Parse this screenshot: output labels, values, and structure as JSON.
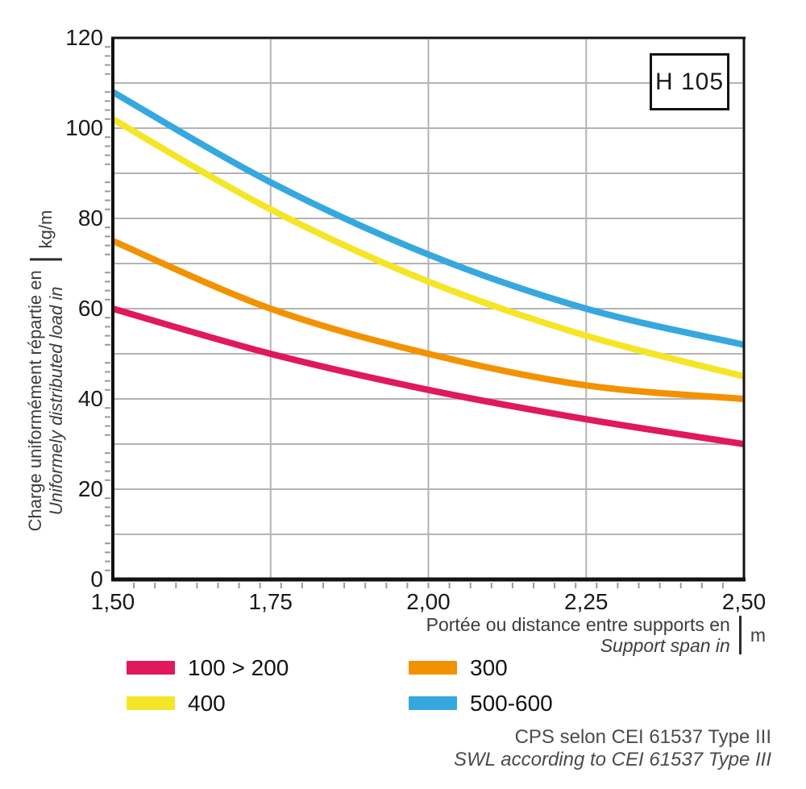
{
  "reference_box": {
    "label": "H 105"
  },
  "chart_data": {
    "type": "line",
    "title": "",
    "x": [
      1.5,
      1.75,
      2.0,
      2.25,
      2.5
    ],
    "x_tick_labels": [
      "1,50",
      "1,75",
      "2,00",
      "2,25",
      "2,50"
    ],
    "y_ticks": [
      0,
      20,
      40,
      60,
      80,
      100,
      120
    ],
    "xlim": [
      1.5,
      2.5
    ],
    "ylim": [
      0,
      120
    ],
    "grid": {
      "y_major_step": 10,
      "y_minor_step": 2,
      "x_minor_divisions": 30,
      "gridlines_x_at": [
        1.75,
        2.0,
        2.25
      ]
    },
    "series": [
      {
        "name": "100 > 200",
        "color": "#e0195c",
        "values": [
          60,
          50,
          42,
          35.5,
          30
        ]
      },
      {
        "name": "300",
        "color": "#f39200",
        "values": [
          75,
          60,
          50,
          43,
          40
        ]
      },
      {
        "name": "400",
        "color": "#f4e626",
        "values": [
          102,
          82,
          66,
          54,
          45
        ]
      },
      {
        "name": "500-600",
        "color": "#35a8de",
        "values": [
          108,
          88,
          72,
          60,
          52
        ]
      }
    ],
    "legend_order": [
      "100 > 200",
      "300",
      "400",
      "500-600"
    ],
    "ylabel": {
      "fr": "Charge uniformément répartie en",
      "en": "Uniformely distributed load in",
      "unit": "kg/m"
    },
    "xlabel": {
      "fr": "Portée ou distance entre supports en",
      "en": "Support span in",
      "unit": "m"
    }
  },
  "footer": {
    "fr": "CPS selon CEI 61537 Type III",
    "en": "SWL according to CEI 61537 Type III"
  },
  "colors": {
    "axis": "#121212",
    "gridline": "#b3b3b3",
    "minor_tick": "#9a9a9a",
    "tick_label": "#1a1a1a",
    "axis_title": "#3d3d3c",
    "footer_text": "#4b4b4b"
  }
}
